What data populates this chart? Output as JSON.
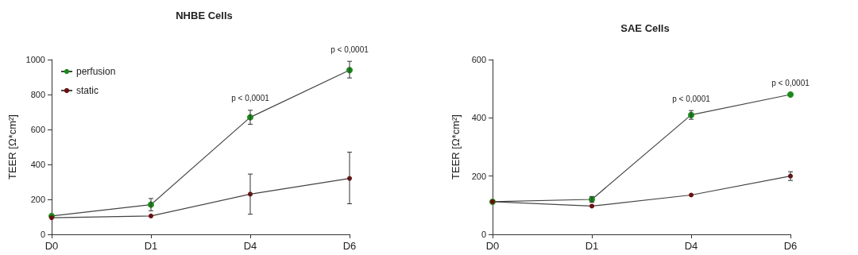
{
  "chart_data": [
    {
      "type": "line",
      "title": "NHBE Cells",
      "ylabel": "TEER [Ω*cm²]",
      "categories": [
        "D0",
        "D1",
        "D4",
        "D6"
      ],
      "ylim": [
        0,
        1000
      ],
      "yticks": [
        0,
        200,
        400,
        600,
        800,
        1000
      ],
      "marker": "circle",
      "legend": "top left",
      "grid": false,
      "series": [
        {
          "name": "perfusion",
          "color": "#1a8a1a",
          "values": [
            105,
            170,
            670,
            940
          ],
          "errors": [
            null,
            35,
            40,
            [
              895,
              990
            ]
          ]
        },
        {
          "name": "static",
          "color": "#6b0f0f",
          "values": [
            95,
            105,
            230,
            320
          ],
          "errors": [
            null,
            null,
            [
              115,
              345
            ],
            [
              175,
              470
            ]
          ]
        }
      ],
      "annotations": [
        "p < 0,0001",
        "p < 0,0001"
      ]
    },
    {
      "type": "line",
      "title": "SAE Cells",
      "ylabel": "TEER [Ω*cm²]",
      "categories": [
        "D0",
        "D1",
        "D4",
        "D6"
      ],
      "ylim": [
        0,
        600
      ],
      "yticks": [
        0,
        200,
        400,
        600
      ],
      "marker": "circle",
      "legend": false,
      "grid": false,
      "series": [
        {
          "color": "#1a8a1a",
          "values": [
            112,
            120,
            410,
            480
          ],
          "errors": [
            null,
            10,
            15,
            null
          ]
        },
        {
          "color": "#6b0f0f",
          "values": [
            112,
            97,
            135,
            200
          ],
          "errors": [
            null,
            null,
            null,
            15
          ]
        }
      ],
      "annotations": [
        "p < 0,0001",
        "p < 0,0001"
      ]
    }
  ]
}
